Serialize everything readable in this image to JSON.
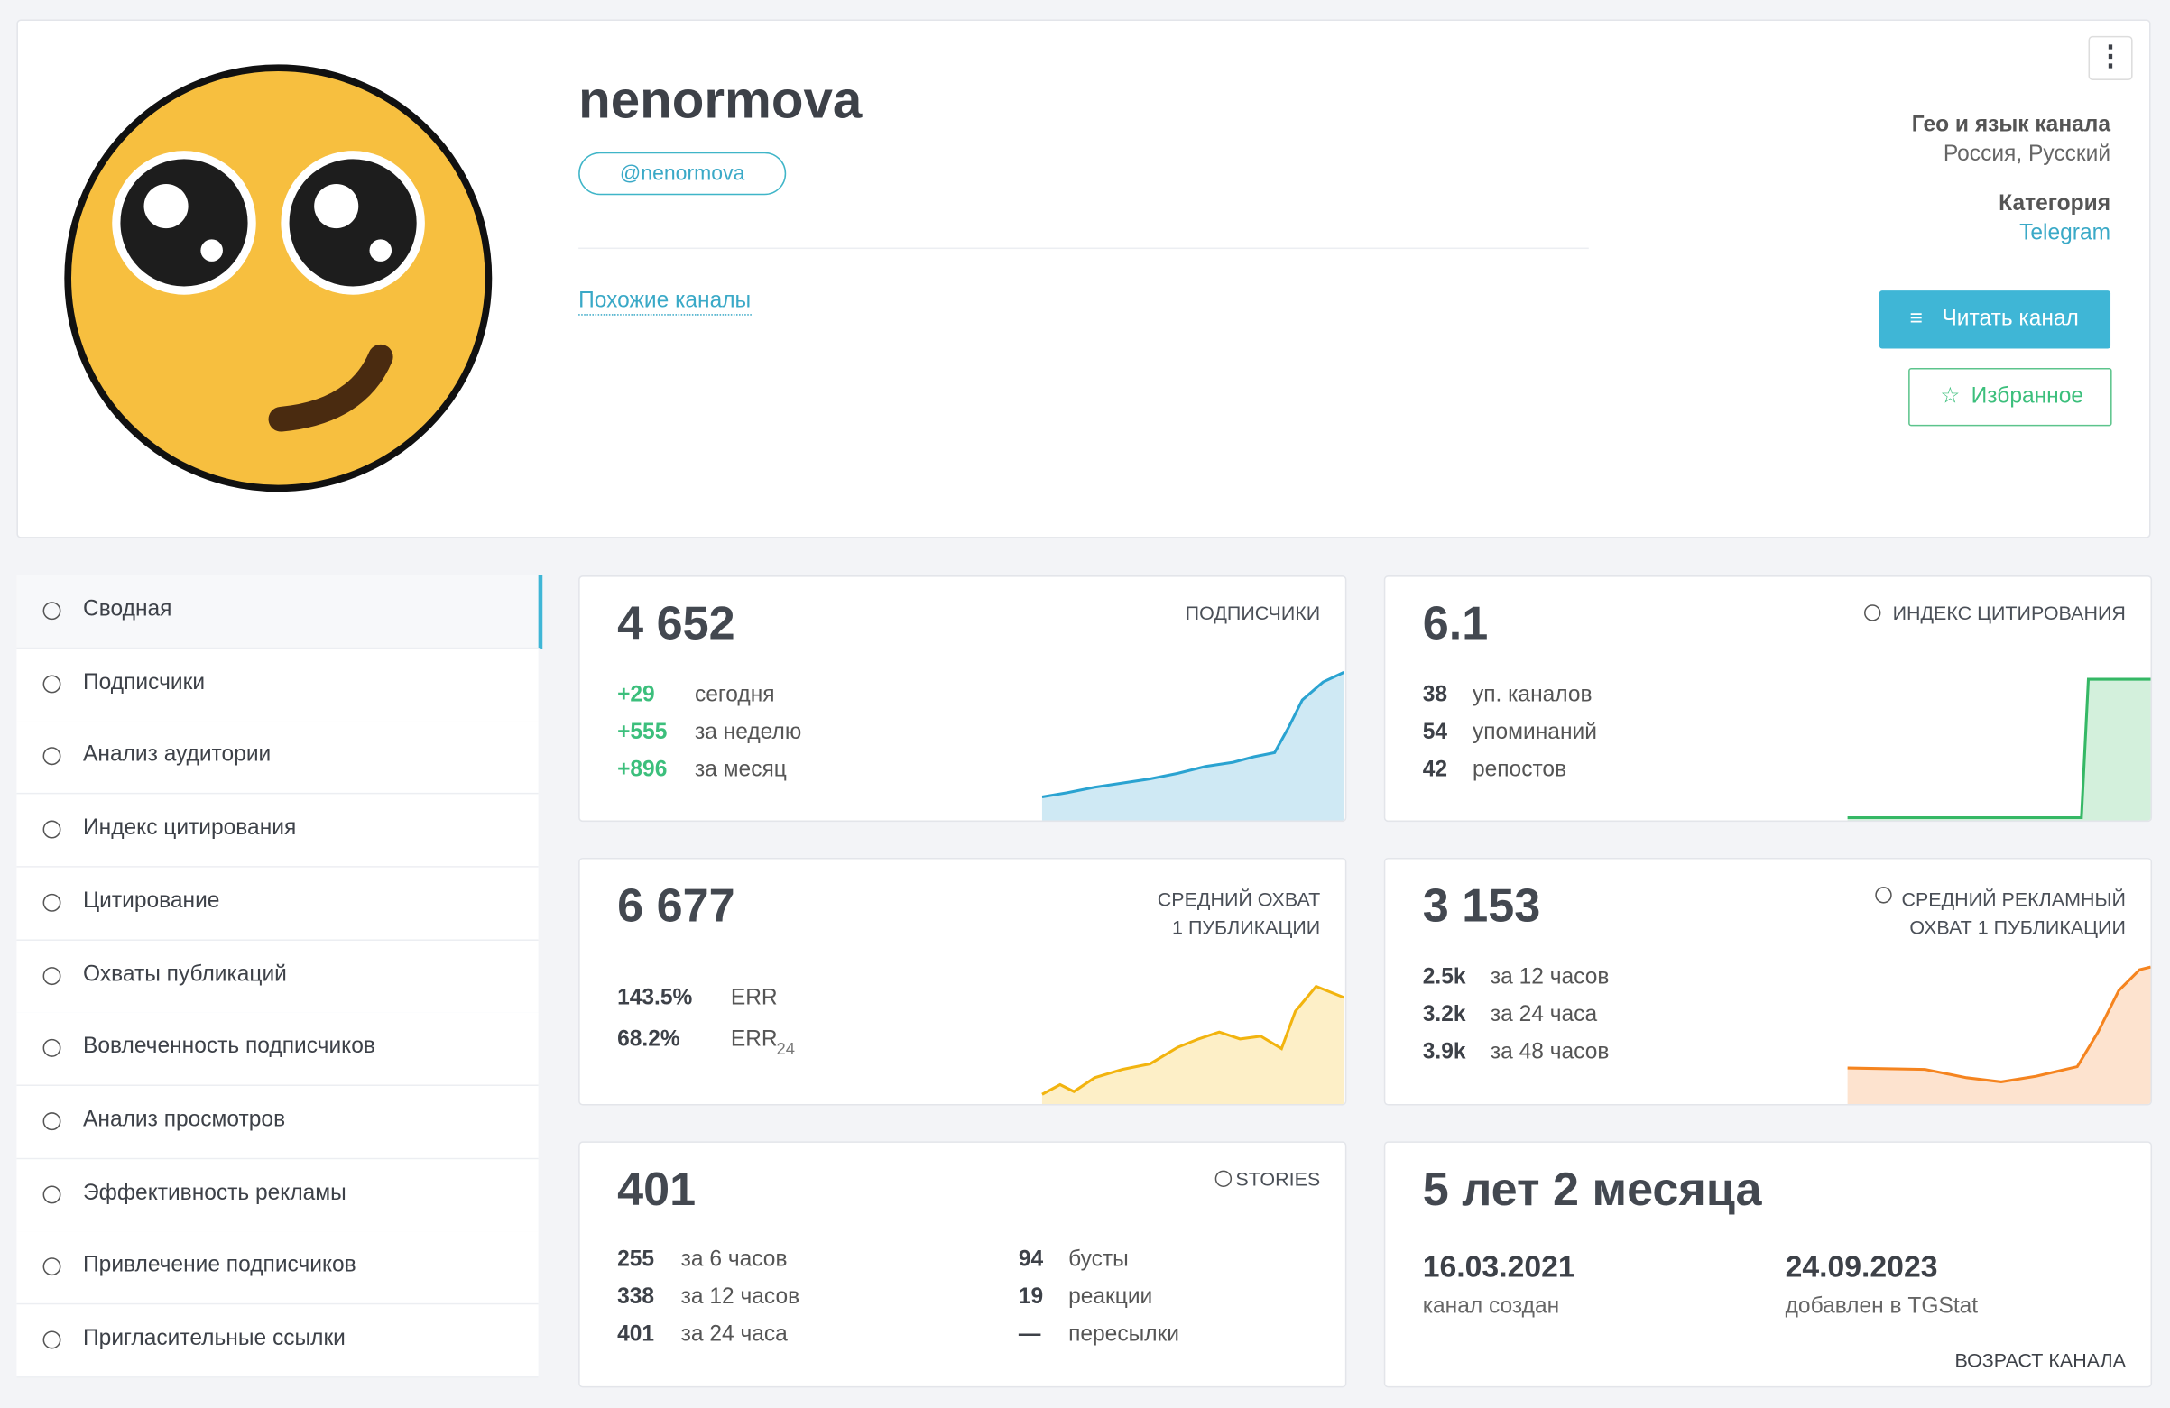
{
  "header": {
    "title": "nenormova",
    "handle": "@nenormova",
    "similar": "Похожие каналы",
    "geo_label": "Гео и язык канала",
    "geo_value": "Россия, Русский",
    "category_label": "Категория",
    "category_value": "Telegram",
    "read_button": "Читать канал",
    "favorite_button": "Избранное"
  },
  "sidebar": {
    "items": [
      "Сводная",
      "Подписчики",
      "Анализ аудитории",
      "Индекс цитирования",
      "Цитирование",
      "Охваты публикаций",
      "Вовлеченность подписчиков",
      "Анализ просмотров",
      "Эффективность рекламы",
      "Привлечение подписчиков",
      "Пригласительные ссылки"
    ]
  },
  "cards": {
    "subscribers": {
      "value": "4 652",
      "label": "ПОДПИСЧИКИ",
      "rows": [
        [
          "+29",
          "сегодня"
        ],
        [
          "+555",
          "за неделю"
        ],
        [
          "+896",
          "за месяц"
        ]
      ]
    },
    "citation": {
      "value": "6.1",
      "label": "ИНДЕКС ЦИТИРОВАНИЯ",
      "rows": [
        [
          "38",
          "уп. каналов"
        ],
        [
          "54",
          "упоминаний"
        ],
        [
          "42",
          "репостов"
        ]
      ]
    },
    "reach": {
      "value": "6 677",
      "label": [
        "СРЕДНИЙ ОХВАТ",
        "1 ПУБЛИКАЦИИ"
      ],
      "rows": [
        [
          "143.5%",
          "ERR",
          ""
        ],
        [
          "68.2%",
          "ERR",
          "24"
        ]
      ]
    },
    "ad_reach": {
      "value": "3 153",
      "label": [
        "СРЕДНИЙ РЕКЛАМНЫЙ",
        "ОХВАТ 1 ПУБЛИКАЦИИ"
      ],
      "rows": [
        [
          "2.5k",
          "за 12 часов"
        ],
        [
          "3.2k",
          "за 24 часа"
        ],
        [
          "3.9k",
          "за 48 часов"
        ]
      ]
    },
    "stories": {
      "value": "401",
      "label": "STORIES",
      "rows": [
        [
          "255",
          "за 6 часов"
        ],
        [
          "338",
          "за 12 часов"
        ],
        [
          "401",
          "за 24 часа"
        ]
      ],
      "stats": [
        [
          "94",
          "бусты"
        ],
        [
          "19",
          "реакции"
        ],
        [
          "—",
          "пересылки"
        ]
      ]
    },
    "age": {
      "value": "5 лет 2 месяца",
      "created": "16.03.2021",
      "created_label": "канал создан",
      "added": "24.09.2023",
      "added_label": "добавлен в TGStat",
      "label": "ВОЗРАСТ КАНАЛА"
    }
  }
}
